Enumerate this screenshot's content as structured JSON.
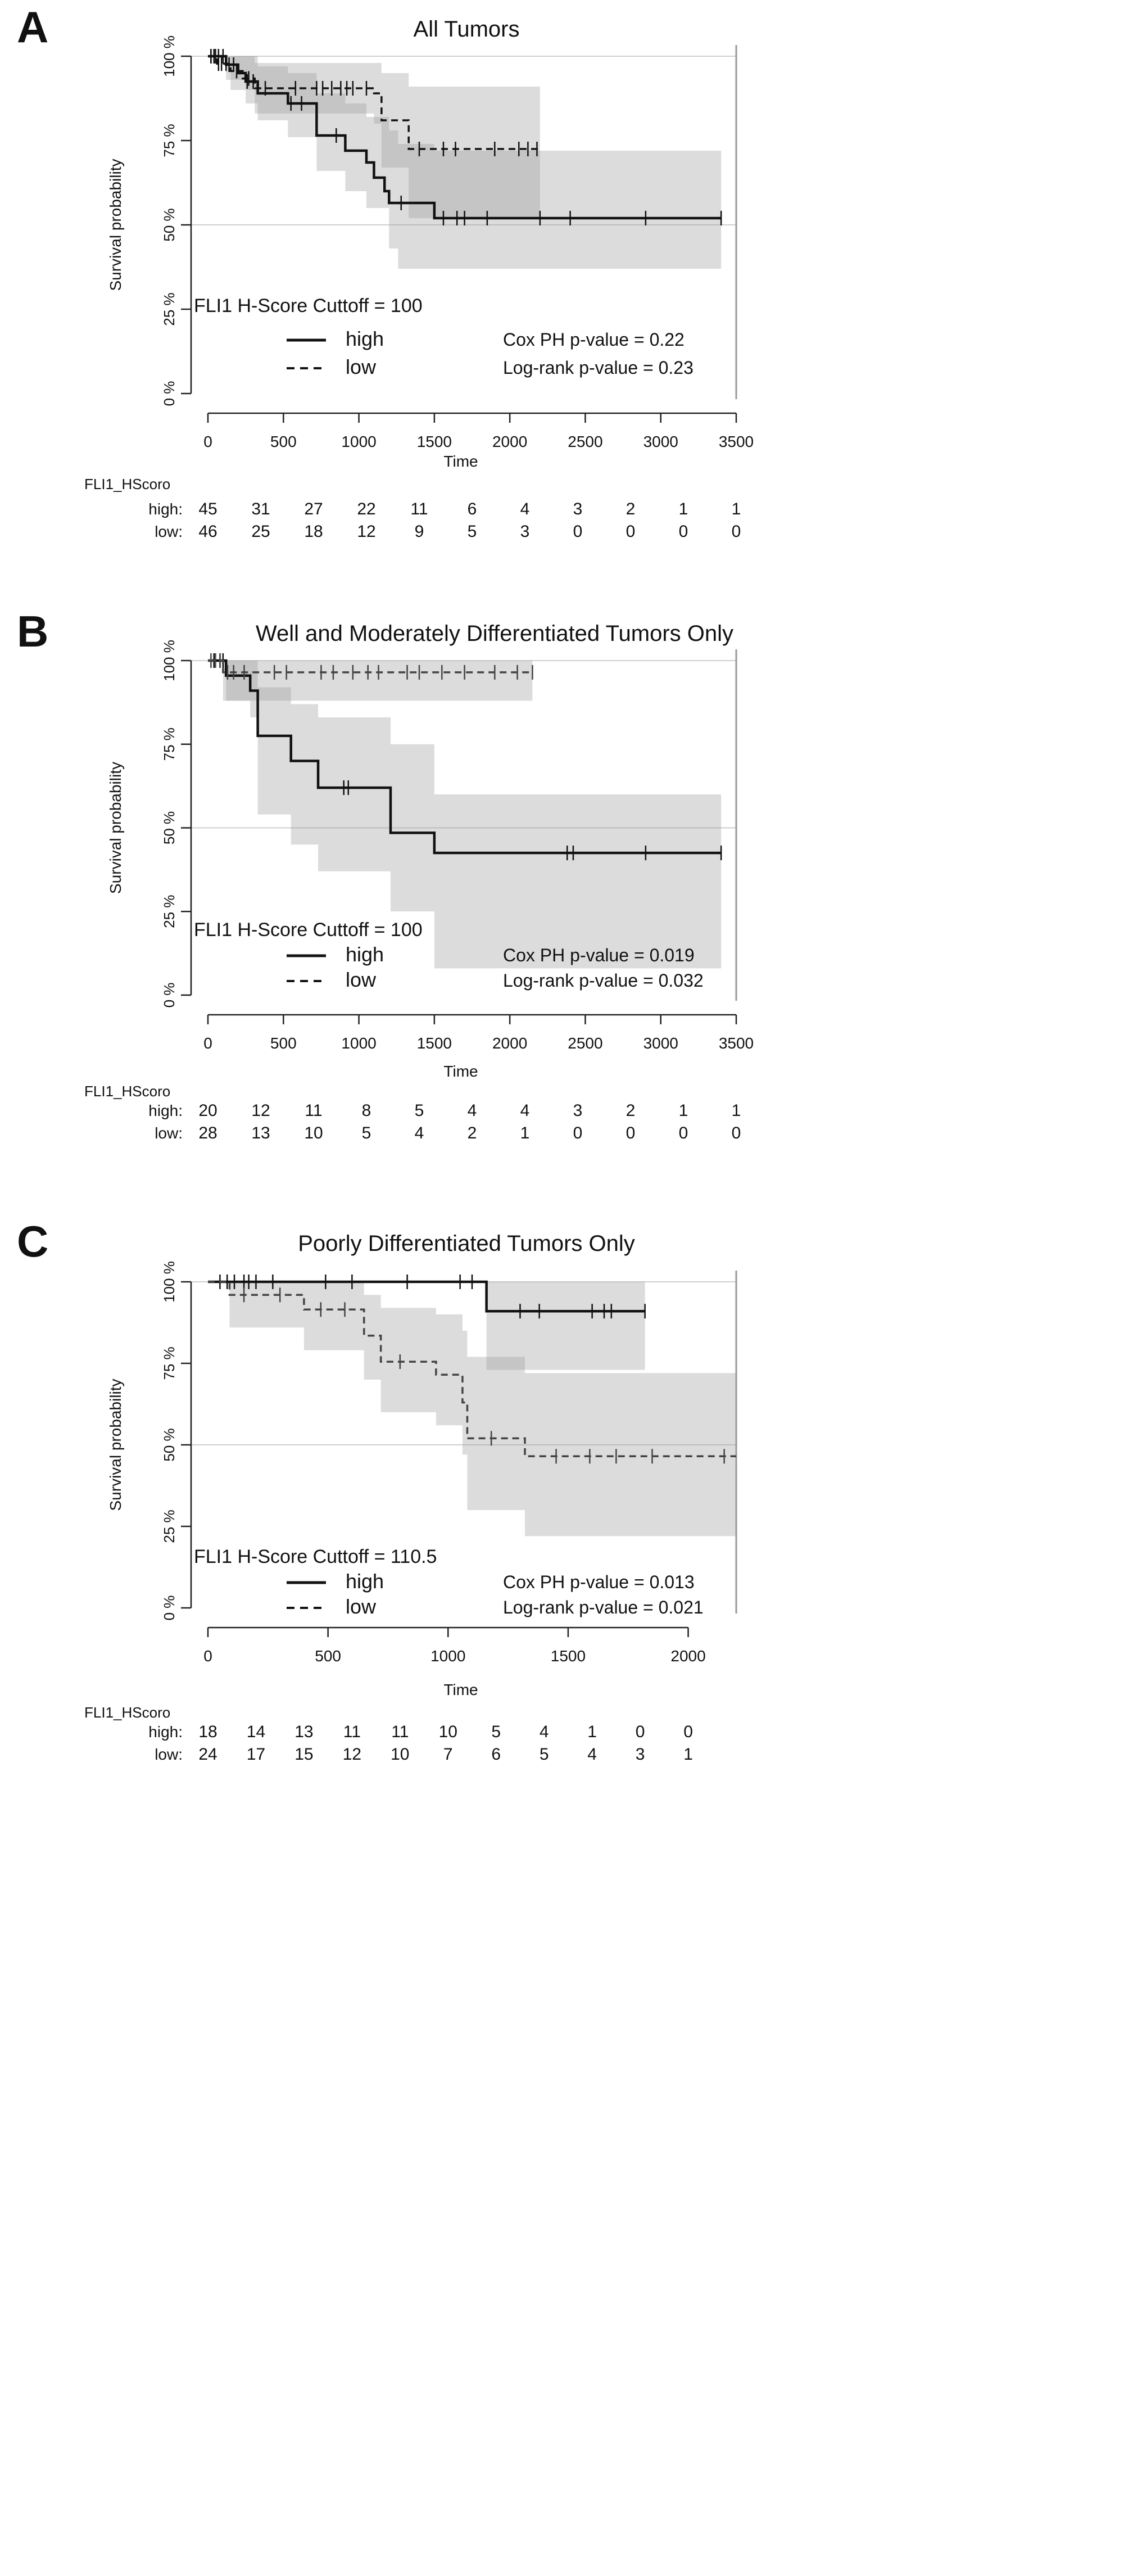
{
  "chart_data": [
    {
      "letter": "A",
      "type": "line",
      "chart_subtype": "kaplan-meier",
      "title": "All Tumors",
      "ylabel": "Survival probability",
      "xlabel": "Time",
      "xlim": [
        0,
        3500
      ],
      "ylim": [
        0,
        1
      ],
      "x_ticks": [
        "0",
        "500",
        "1000",
        "1500",
        "2000",
        "2500",
        "3000",
        "3500"
      ],
      "y_ticks": [
        "0 %",
        "25 %",
        "50 %",
        "75 %",
        "100 %"
      ],
      "grid": "horizontal at 50% and 100%",
      "cutoff_label": "FLI1 H-Score Cuttoff = 100",
      "cox_label": "Cox PH p-value = 0.22",
      "logrank_label": "Log-rank p-value = 0.23",
      "legend": [
        {
          "label": "high",
          "style": "solid"
        },
        {
          "label": "low",
          "style": "dashed"
        }
      ],
      "series": [
        {
          "name": "high",
          "style": "solid",
          "color": "#111111",
          "steps": [
            [
              0,
              1.0
            ],
            [
              120,
              0.975
            ],
            [
              200,
              0.95
            ],
            [
              250,
              0.925
            ],
            [
              330,
              0.89
            ],
            [
              530,
              0.86
            ],
            [
              720,
              0.765
            ],
            [
              910,
              0.72
            ],
            [
              1050,
              0.685
            ],
            [
              1100,
              0.64
            ],
            [
              1170,
              0.6
            ],
            [
              1200,
              0.565
            ],
            [
              1260,
              0.565
            ],
            [
              1500,
              0.52
            ],
            [
              3400,
              0.52
            ]
          ],
          "end": 3400,
          "censor": [
            20,
            50,
            70,
            100,
            140,
            170,
            260,
            300,
            550,
            620,
            850,
            1280,
            1560,
            1650,
            1700,
            1850,
            2200,
            2400,
            2900,
            3400
          ],
          "ci": [
            [
              0,
              1.0,
              1.0
            ],
            [
              120,
              0.93,
              1.0
            ],
            [
              250,
              0.86,
              1.0
            ],
            [
              330,
              0.81,
              0.97
            ],
            [
              530,
              0.76,
              0.95
            ],
            [
              720,
              0.66,
              0.89
            ],
            [
              910,
              0.6,
              0.86
            ],
            [
              1050,
              0.55,
              0.82
            ],
            [
              1200,
              0.43,
              0.78
            ],
            [
              1260,
              0.37,
              0.74
            ],
            [
              1500,
              0.37,
              0.72
            ],
            [
              3400,
              0.37,
              0.72
            ]
          ]
        },
        {
          "name": "low",
          "style": "dashed",
          "color": "#111111",
          "steps": [
            [
              0,
              1.0
            ],
            [
              60,
              0.978
            ],
            [
              150,
              0.956
            ],
            [
              230,
              0.934
            ],
            [
              310,
              0.905
            ],
            [
              1080,
              0.905
            ],
            [
              1100,
              0.89
            ],
            [
              1150,
              0.81
            ],
            [
              1330,
              0.725
            ],
            [
              2200,
              0.725
            ]
          ],
          "end": 2200,
          "censor": [
            20,
            40,
            70,
            90,
            120,
            190,
            270,
            380,
            580,
            720,
            760,
            820,
            880,
            920,
            960,
            1050,
            1400,
            1560,
            1640,
            1900,
            2060,
            2120,
            2180
          ],
          "ci": [
            [
              0,
              1.0,
              1.0
            ],
            [
              150,
              0.9,
              1.0
            ],
            [
              310,
              0.83,
              0.98
            ],
            [
              1100,
              0.8,
              0.98
            ],
            [
              1150,
              0.67,
              0.95
            ],
            [
              1330,
              0.52,
              0.91
            ],
            [
              2200,
              0.52,
              0.91
            ]
          ]
        }
      ],
      "risk_table": {
        "header": "FLI1_HScoro",
        "rows": [
          {
            "label": "high:",
            "values": [
              "45",
              "31",
              "27",
              "22",
              "11",
              "6",
              "4",
              "3",
              "2",
              "1",
              "1"
            ]
          },
          {
            "label": "low:",
            "values": [
              "46",
              "25",
              "18",
              "12",
              "9",
              "5",
              "3",
              "0",
              "0",
              "0",
              "0"
            ]
          }
        ]
      }
    },
    {
      "letter": "B",
      "type": "line",
      "chart_subtype": "kaplan-meier",
      "title": "Well and Moderately Differentiated Tumors Only",
      "ylabel": "Survival probability",
      "xlabel": "Time",
      "xlim": [
        0,
        3500
      ],
      "ylim": [
        0,
        1
      ],
      "x_ticks": [
        "0",
        "500",
        "1000",
        "1500",
        "2000",
        "2500",
        "3000",
        "3500"
      ],
      "y_ticks": [
        "0 %",
        "25 %",
        "50 %",
        "75 %",
        "100 %"
      ],
      "grid": "horizontal at 50% and 100%",
      "cutoff_label": "FLI1 H-Score Cuttoff = 100",
      "cox_label": "Cox PH p-value = 0.019",
      "logrank_label": "Log-rank p-value = 0.032",
      "legend": [
        {
          "label": "high",
          "style": "solid"
        },
        {
          "label": "low",
          "style": "dashed"
        }
      ],
      "series": [
        {
          "name": "high",
          "style": "solid",
          "color": "#111111",
          "steps": [
            [
              0,
              1.0
            ],
            [
              120,
              0.955
            ],
            [
              280,
              0.91
            ],
            [
              330,
              0.775
            ],
            [
              550,
              0.7
            ],
            [
              730,
              0.62
            ],
            [
              1210,
              0.485
            ],
            [
              1500,
              0.425
            ],
            [
              3400,
              0.425
            ]
          ],
          "end": 3400,
          "censor": [
            40,
            80,
            100,
            900,
            930,
            2380,
            2420,
            2900,
            3400
          ],
          "ci": [
            [
              0,
              1.0,
              1.0
            ],
            [
              120,
              0.88,
              1.0
            ],
            [
              280,
              0.83,
              1.0
            ],
            [
              330,
              0.54,
              0.92
            ],
            [
              550,
              0.45,
              0.87
            ],
            [
              730,
              0.37,
              0.83
            ],
            [
              1210,
              0.25,
              0.75
            ],
            [
              1500,
              0.08,
              0.6
            ],
            [
              3400,
              0.08,
              0.6
            ]
          ]
        },
        {
          "name": "low",
          "style": "dashed",
          "color": "#444444",
          "steps": [
            [
              0,
              1.0
            ],
            [
              100,
              0.965
            ],
            [
              2150,
              0.965
            ]
          ],
          "end": 2150,
          "censor": [
            20,
            50,
            80,
            130,
            170,
            240,
            440,
            520,
            750,
            830,
            960,
            1060,
            1130,
            1320,
            1400,
            1550,
            1700,
            1900,
            2050,
            2150
          ],
          "ci": [
            [
              0,
              1.0,
              1.0
            ],
            [
              100,
              0.88,
              1.0
            ],
            [
              2150,
              0.88,
              1.0
            ]
          ]
        }
      ],
      "risk_table": {
        "header": "FLI1_HScoro",
        "rows": [
          {
            "label": "high:",
            "values": [
              "20",
              "12",
              "11",
              "8",
              "5",
              "4",
              "4",
              "3",
              "2",
              "1",
              "1"
            ]
          },
          {
            "label": "low:",
            "values": [
              "28",
              "13",
              "10",
              "5",
              "4",
              "2",
              "1",
              "0",
              "0",
              "0",
              "0"
            ]
          }
        ]
      }
    },
    {
      "letter": "C",
      "type": "line",
      "chart_subtype": "kaplan-meier",
      "title": "Poorly Differentiated Tumors Only",
      "ylabel": "Survival probability",
      "xlabel": "Time",
      "xlim": [
        0,
        2200
      ],
      "ylim": [
        0,
        1
      ],
      "x_ticks": [
        "0",
        "500",
        "1000",
        "1500",
        "2000"
      ],
      "y_ticks": [
        "0 %",
        "25 %",
        "50 %",
        "75 %",
        "100 %"
      ],
      "grid": "horizontal at 50% and 100%",
      "cutoff_label": "FLI1 H-Score Cuttoff = 110.5",
      "cox_label": "Cox PH p-value = 0.013",
      "logrank_label": "Log-rank p-value = 0.021",
      "legend": [
        {
          "label": "high",
          "style": "solid"
        },
        {
          "label": "low",
          "style": "dashed"
        }
      ],
      "series": [
        {
          "name": "high",
          "style": "solid",
          "color": "#111111",
          "steps": [
            [
              0,
              1.0
            ],
            [
              1160,
              0.91
            ],
            [
              1820,
              0.91
            ]
          ],
          "end": 1820,
          "censor": [
            50,
            80,
            110,
            150,
            170,
            200,
            270,
            490,
            600,
            830,
            1050,
            1100,
            1300,
            1380,
            1600,
            1650,
            1680,
            1820
          ],
          "ci": [
            [
              0,
              1.0,
              1.0
            ],
            [
              1160,
              0.73,
              1.0
            ],
            [
              1820,
              0.73,
              1.0
            ]
          ]
        },
        {
          "name": "low",
          "style": "dashed",
          "color": "#444444",
          "steps": [
            [
              0,
              1.0
            ],
            [
              90,
              0.96
            ],
            [
              400,
              0.915
            ],
            [
              650,
              0.835
            ],
            [
              720,
              0.755
            ],
            [
              950,
              0.715
            ],
            [
              1060,
              0.63
            ],
            [
              1080,
              0.52
            ],
            [
              1320,
              0.465
            ],
            [
              2200,
              0.465
            ]
          ],
          "end": 2200,
          "censor": [
            150,
            300,
            470,
            570,
            800,
            1180,
            1450,
            1590,
            1700,
            1850,
            2150
          ],
          "ci": [
            [
              0,
              1.0,
              1.0
            ],
            [
              90,
              0.86,
              1.0
            ],
            [
              400,
              0.79,
              1.0
            ],
            [
              650,
              0.7,
              0.96
            ],
            [
              720,
              0.6,
              0.92
            ],
            [
              950,
              0.56,
              0.9
            ],
            [
              1060,
              0.47,
              0.85
            ],
            [
              1080,
              0.3,
              0.77
            ],
            [
              1320,
              0.22,
              0.72
            ],
            [
              2200,
              0.22,
              0.72
            ]
          ]
        }
      ],
      "risk_table": {
        "header": "FLI1_HScoro",
        "rows": [
          {
            "label": "high:",
            "values": [
              "18",
              "14",
              "13",
              "11",
              "11",
              "10",
              "5",
              "4",
              "1",
              "0",
              "0"
            ]
          },
          {
            "label": "low:",
            "values": [
              "24",
              "17",
              "15",
              "12",
              "10",
              "7",
              "6",
              "5",
              "4",
              "3",
              "1"
            ]
          }
        ]
      }
    }
  ]
}
